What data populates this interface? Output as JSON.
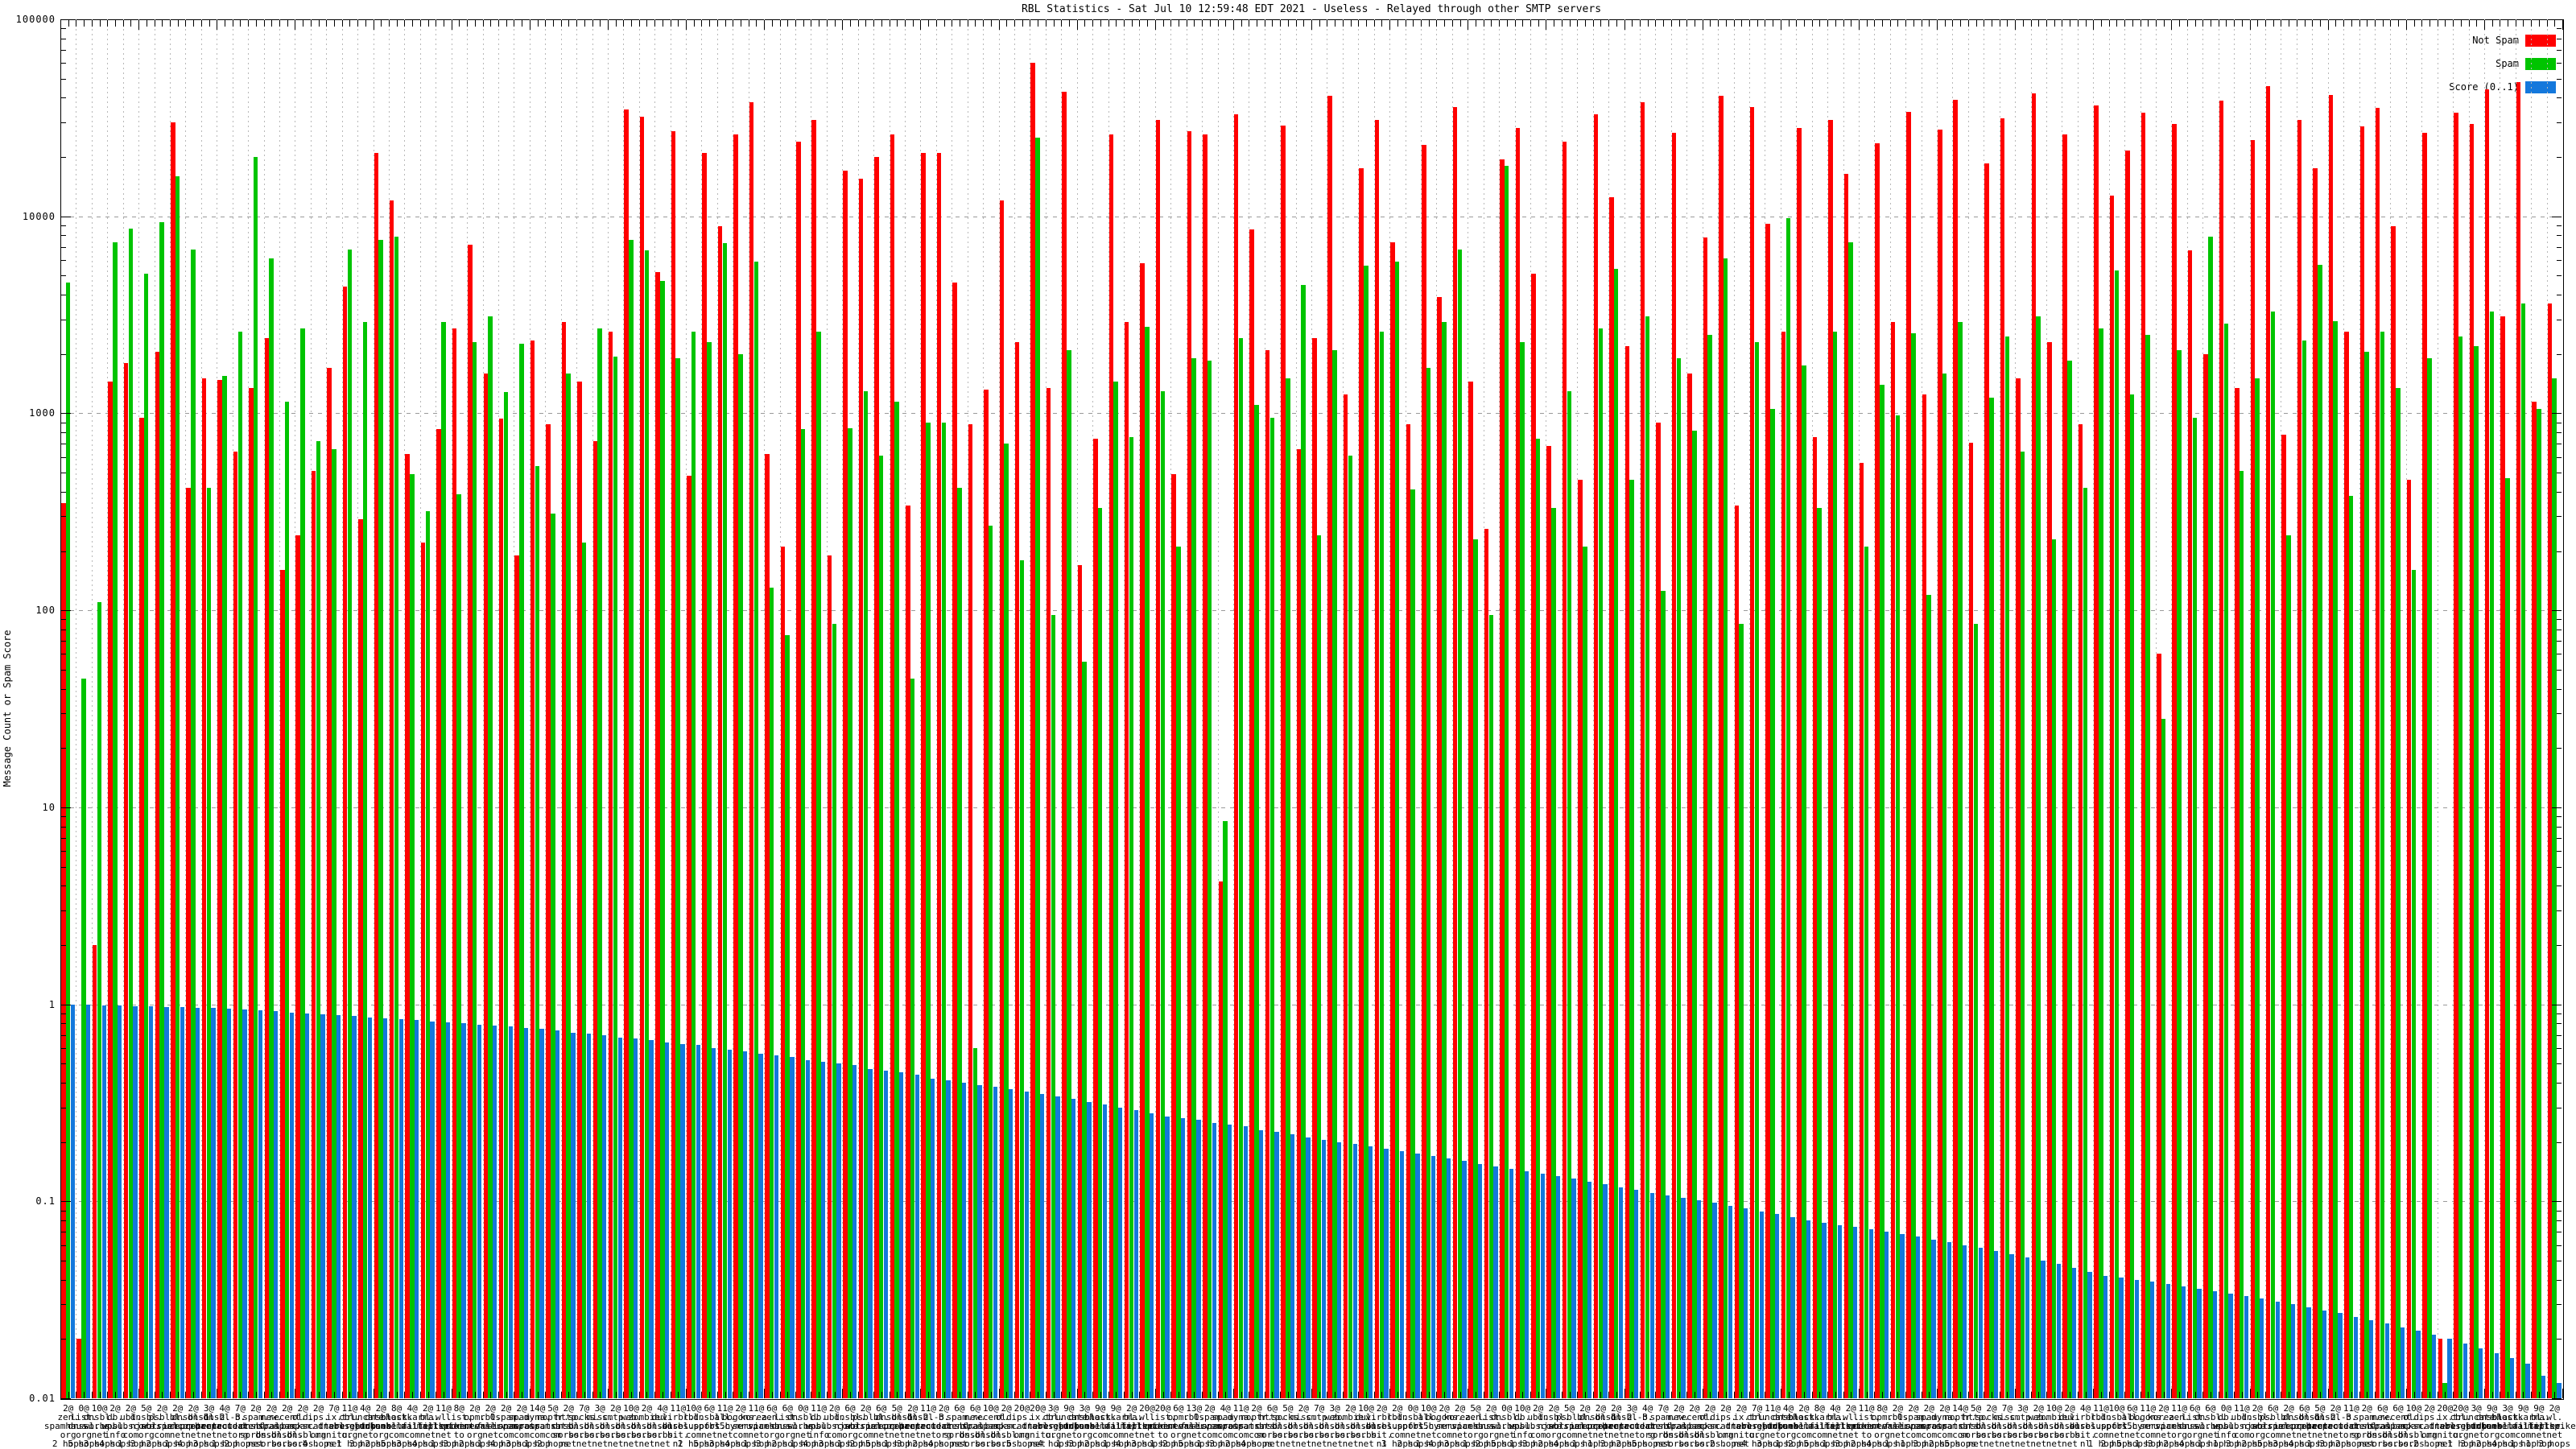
{
  "header": {
    "title": "RBL Statistics - Sat Jul 10 12:59:48 EDT 2021 - Useless - Relayed through other SMTP servers"
  },
  "axes": {
    "y_label": "Message Count or Spam Score",
    "y_tick_labels": [
      "100000",
      "10000",
      "1000",
      "100",
      "10",
      "1",
      "0.1",
      "0.01"
    ]
  },
  "legend": {
    "items": [
      {
        "label": "Not Spam",
        "color": "#ff0000"
      },
      {
        "label": "Spam",
        "color": "#00c400"
      },
      {
        "label": "Score (0..1)",
        "color": "#1478dc"
      }
    ]
  },
  "chart_data": {
    "type": "bar",
    "title": "RBL Statistics - Sat Jul 10 12:59:48 EDT 2021 - Useless - Relayed through other SMTP servers",
    "ylabel": "Message Count or Spam Score",
    "y_scale": "log",
    "ylim": [
      0.01,
      100000
    ],
    "grid": true,
    "legend_position": "top-right",
    "series_names": [
      "Not Spam",
      "Spam",
      "Score (0..1)"
    ],
    "colors": {
      "not_spam": "#ff0000",
      "spam": "#00c400",
      "score": "#1478dc"
    },
    "hosts_pool": [
      "zen.spamhaus.org",
      "list.dnswl.org",
      "dnsbl.sorbs.net",
      "db.wpbl.info",
      "ubl.unsubscore.com",
      "dnsbl.njabl.org",
      "psbl.surriel.com",
      "bl.spamcop.net",
      "dnsbl-1.uceprotect.net",
      "dnsbl-2.uceprotect.net",
      "dnsbl-3.uceprotect.net",
      "b.barracudacentral.org",
      "spam.dnsbl.sorbs.net",
      "new.spam.dnsbl.sorbs.net",
      "recent.spam.dnsbl.sorbs.net",
      "old.spam.dnsbl.sorbs.net",
      "ips.backscatterer.org",
      "ix.dnsbl.manitu.net",
      "cbl.abuseat.org",
      "truncate.gbudb.net",
      "dnsbl.dronebl.org",
      "black.junkemailfilter.com",
      "hostkarma.junkemailfilter.com",
      "bl.mailspike.net",
      "wl.mailspike.net",
      "list.quorum.to",
      "opm.tornevall.org",
      "rbl.interserver.net",
      "0spam.fusionzero.com",
      "spam.spamrats.com",
      "dyna.spamrats.com",
      "noptr.spamrats.com",
      "http.dnsbl.sorbs.net",
      "socks.dnsbl.sorbs.net",
      "misc.dnsbl.sorbs.net",
      "smtp.dnsbl.sorbs.net",
      "web.dnsbl.sorbs.net",
      "zombie.dnsbl.sorbs.net",
      "dul.dnsbl.sorbs.net",
      "virbl.dnsbl.bit.nl",
      "rbl.suresupport.com",
      "dnsbl.spfbl.net",
      "all.s5h.net",
      "bogons.cymru.com",
      "korea.services.net"
    ],
    "groups": {
      "count": [
        2,
        0,
        10,
        2,
        2,
        5,
        2,
        2,
        2,
        3,
        4,
        7,
        2,
        2,
        2,
        2,
        2,
        7,
        11,
        4,
        2,
        8,
        4,
        2,
        11,
        8,
        2,
        2,
        2,
        2,
        14,
        5,
        2,
        7,
        3,
        2,
        10,
        2,
        4,
        11,
        10,
        6,
        11,
        2,
        11,
        6,
        6,
        0,
        11,
        2,
        6,
        2,
        6,
        5,
        2,
        11,
        2,
        6,
        6,
        10,
        2,
        20,
        20,
        3,
        9,
        3,
        9,
        9,
        2,
        20,
        20,
        6,
        13,
        2,
        4,
        11,
        2,
        6,
        5,
        2,
        7,
        3,
        2,
        10,
        2,
        2,
        0,
        10,
        2,
        2,
        5,
        2,
        0,
        10,
        2,
        2,
        5,
        2,
        2,
        2,
        3,
        4,
        7,
        2,
        2,
        2,
        2,
        2,
        7,
        11,
        4,
        2,
        8,
        4,
        2,
        11,
        8,
        2,
        2,
        2,
        2,
        14,
        5,
        2,
        7,
        3,
        2,
        10,
        2,
        4,
        11,
        10,
        6,
        11,
        2,
        11,
        6,
        6,
        0,
        11,
        2,
        6,
        2,
        6,
        5,
        2,
        11,
        2,
        6,
        6,
        10,
        2,
        20,
        20,
        3,
        9,
        3,
        9,
        9,
        2
      ],
      "host_idx": [
        0,
        1,
        2,
        3,
        4,
        5,
        6,
        7,
        8,
        9,
        10,
        11,
        12,
        13,
        14,
        15,
        16,
        17,
        18,
        19,
        20,
        21,
        22,
        23,
        24,
        25,
        26,
        27,
        28,
        29,
        30,
        31,
        32,
        33,
        34,
        35,
        36,
        37,
        38,
        39,
        40,
        41,
        42,
        43,
        44,
        0,
        1,
        2,
        3,
        4,
        5,
        6,
        7,
        8,
        9,
        10,
        11,
        12,
        13,
        14,
        15,
        16,
        17,
        18,
        19,
        20,
        21,
        22,
        23,
        24,
        25,
        26,
        27,
        28,
        29,
        30,
        31,
        32,
        33,
        34,
        35,
        36,
        37,
        38,
        39,
        40,
        41,
        42,
        43,
        44,
        0,
        1,
        2,
        3,
        4,
        5,
        6,
        7,
        8,
        9,
        10,
        11,
        12,
        13,
        14,
        15,
        16,
        17,
        18,
        19,
        20,
        21,
        22,
        23,
        24,
        25,
        26,
        27,
        28,
        29,
        30,
        31,
        32,
        33,
        34,
        35,
        36,
        37,
        38,
        39,
        40,
        41,
        42,
        43,
        44,
        0,
        1,
        2,
        3,
        4,
        5,
        6,
        7,
        8,
        9,
        10,
        11,
        12,
        13,
        14,
        15,
        16,
        17,
        18,
        19,
        20,
        21,
        22,
        23,
        24
      ],
      "hops": [
        2,
        5,
        3,
        4,
        1,
        3,
        2,
        1,
        4,
        3,
        1,
        2,
        5,
        1,
        3,
        2,
        4,
        1,
        1,
        3,
        2,
        5,
        3,
        4,
        1,
        3,
        2,
        1,
        4,
        3,
        1,
        2,
        5,
        1,
        3,
        2,
        4,
        1,
        1,
        3,
        2,
        5,
        3,
        4,
        1,
        3,
        2,
        1,
        4,
        3,
        1,
        2,
        5,
        1,
        3,
        2,
        4,
        1,
        1,
        3,
        2,
        5,
        3,
        4,
        1,
        3,
        2,
        1,
        4,
        3,
        1,
        2,
        5,
        1,
        3,
        2,
        4,
        1,
        1,
        3,
        2,
        5,
        3,
        4,
        1,
        3,
        2,
        1,
        4,
        3,
        1,
        2,
        5,
        1,
        3,
        2,
        4,
        1,
        1,
        3,
        2,
        5,
        3,
        4,
        1,
        3,
        2,
        1,
        4,
        3,
        1,
        2,
        5,
        1,
        3,
        2,
        4,
        1,
        1,
        3,
        2,
        5,
        3,
        4,
        1,
        3,
        2,
        1,
        4,
        3,
        1,
        2,
        5,
        1,
        3,
        2,
        4,
        1,
        1,
        3,
        2,
        5,
        3,
        4,
        1,
        3,
        2,
        1,
        4,
        3,
        1,
        2,
        5,
        1,
        3,
        2,
        4,
        1,
        1,
        3
      ]
    },
    "not_spam": [
      350,
      0.02,
      2,
      1450,
      1800,
      950,
      2050,
      30000,
      420,
      1500,
      1480,
      640,
      1350,
      2400,
      160,
      240,
      510,
      1700,
      4400,
      290,
      21000,
      12000,
      620,
      220,
      830,
      2700,
      7200,
      1600,
      940,
      190,
      2350,
      880,
      2900,
      1450,
      720,
      2600,
      35000,
      32000,
      5200,
      27000,
      480,
      21000,
      8900,
      26000,
      38000,
      620,
      210,
      24000,
      31000,
      190,
      17000,
      15500,
      20000,
      26000,
      340,
      21000,
      21000,
      4600,
      880,
      1320,
      12000,
      2300,
      60000,
      1350,
      43000,
      170,
      740,
      26000,
      2900,
      5800,
      31000,
      490,
      27000,
      26000,
      4.2,
      33000,
      8600,
      2100,
      29000,
      660,
      2400,
      41000,
      1250,
      17500,
      31000,
      7400,
      880,
      23000,
      3900,
      36000,
      1450,
      260,
      19500,
      28000,
      5100,
      680,
      24000,
      460,
      33000,
      12500,
      2200,
      38000,
      900,
      26500,
      1600,
      7800,
      41000,
      340,
      36000,
      9200,
      2600,
      28000,
      760,
      31000,
      16500,
      560,
      23500,
      2900,
      34000,
      1250,
      27500,
      39000,
      710,
      18500,
      31500,
      1500,
      42000,
      2300,
      26000,
      880,
      36500,
      12800,
      21500,
      33500,
      60,
      29500,
      6700,
      2000,
      38500,
      1350,
      24500,
      46000,
      780,
      31000,
      17500,
      41500,
      2600,
      28500,
      35500,
      8900,
      460,
      26500,
      0.02,
      33500,
      29500,
      44000,
      3100,
      48000,
      1150,
      3600
    ],
    "spam": [
      4600,
      45,
      110,
      7400,
      8700,
      5100,
      9300,
      16000,
      6800,
      420,
      1550,
      2600,
      20000,
      6100,
      1150,
      2700,
      720,
      660,
      6800,
      2900,
      7600,
      7900,
      490,
      320,
      2900,
      390,
      2300,
      3100,
      1280,
      2250,
      540,
      310,
      1600,
      220,
      2700,
      1950,
      7600,
      6700,
      4700,
      1900,
      2600,
      2300,
      7300,
      2000,
      5900,
      130,
      75,
      830,
      2600,
      85,
      840,
      1300,
      610,
      1150,
      45,
      900,
      900,
      420,
      0.6,
      270,
      700,
      180,
      25000,
      95,
      2100,
      55,
      330,
      1450,
      760,
      2750,
      1300,
      210,
      1900,
      1850,
      8.5,
      2400,
      1100,
      950,
      1500,
      4500,
      240,
      2100,
      610,
      5600,
      2600,
      5900,
      410,
      1700,
      2900,
      6800,
      230,
      95,
      18000,
      2300,
      740,
      330,
      1300,
      210,
      2700,
      5400,
      460,
      3100,
      125,
      1900,
      820,
      2500,
      6100,
      85,
      2300,
      1050,
      9800,
      1750,
      330,
      2600,
      7400,
      210,
      1400,
      980,
      2550,
      120,
      1600,
      2900,
      85,
      1200,
      2450,
      640,
      3100,
      230,
      1850,
      420,
      2700,
      5300,
      1250,
      2500,
      28,
      2100,
      950,
      7900,
      2850,
      510,
      1500,
      3300,
      240,
      2350,
      5700,
      2950,
      380,
      2050,
      2600,
      1350,
      160,
      1900,
      0.012,
      2450,
      2200,
      3300,
      470,
      3600,
      1050,
      1500
    ],
    "score": [
      1.0,
      1.0,
      0.99,
      0.99,
      0.98,
      0.98,
      0.97,
      0.97,
      0.96,
      0.96,
      0.95,
      0.94,
      0.93,
      0.92,
      0.91,
      0.9,
      0.89,
      0.88,
      0.87,
      0.86,
      0.85,
      0.84,
      0.83,
      0.82,
      0.81,
      0.8,
      0.79,
      0.78,
      0.77,
      0.76,
      0.75,
      0.74,
      0.72,
      0.71,
      0.7,
      0.68,
      0.67,
      0.66,
      0.64,
      0.63,
      0.62,
      0.6,
      0.59,
      0.58,
      0.56,
      0.55,
      0.54,
      0.52,
      0.51,
      0.5,
      0.49,
      0.47,
      0.46,
      0.45,
      0.44,
      0.42,
      0.41,
      0.4,
      0.39,
      0.38,
      0.37,
      0.36,
      0.35,
      0.34,
      0.33,
      0.32,
      0.31,
      0.3,
      0.29,
      0.28,
      0.27,
      0.265,
      0.26,
      0.25,
      0.245,
      0.24,
      0.23,
      0.225,
      0.22,
      0.21,
      0.205,
      0.2,
      0.195,
      0.19,
      0.185,
      0.18,
      0.175,
      0.17,
      0.165,
      0.16,
      0.155,
      0.15,
      0.146,
      0.142,
      0.138,
      0.134,
      0.13,
      0.126,
      0.122,
      0.118,
      0.114,
      0.11,
      0.107,
      0.104,
      0.101,
      0.098,
      0.095,
      0.092,
      0.089,
      0.086,
      0.083,
      0.08,
      0.078,
      0.076,
      0.074,
      0.072,
      0.07,
      0.068,
      0.066,
      0.064,
      0.062,
      0.06,
      0.058,
      0.056,
      0.054,
      0.052,
      0.05,
      0.048,
      0.046,
      0.044,
      0.042,
      0.041,
      0.04,
      0.039,
      0.038,
      0.037,
      0.036,
      0.035,
      0.034,
      0.033,
      0.032,
      0.031,
      0.03,
      0.029,
      0.028,
      0.027,
      0.026,
      0.025,
      0.024,
      0.023,
      0.022,
      0.021,
      0.02,
      0.019,
      0.018,
      0.017,
      0.016,
      0.015,
      0.013,
      0.012
    ]
  }
}
